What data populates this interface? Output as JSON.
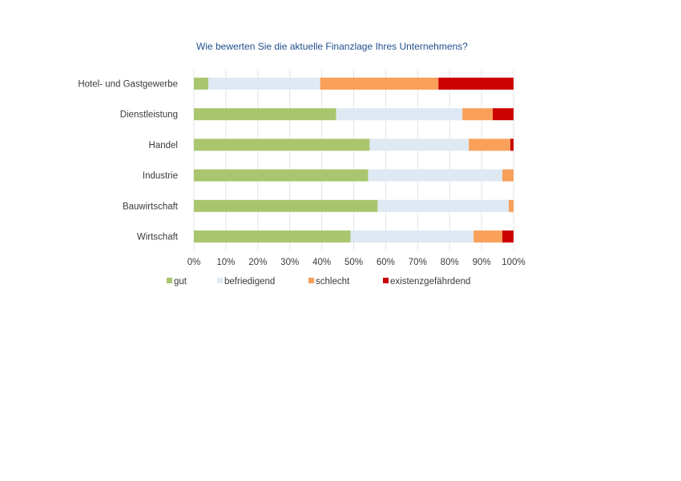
{
  "chart_data": {
    "type": "bar",
    "orientation": "horizontal",
    "stacked": true,
    "title": "Wie bewerten Sie die aktuelle Finanzlage Ihres Unternehmens?",
    "categories": [
      "Hotel- und Gastgewerbe",
      "Dienstleistung",
      "Handel",
      "Industrie",
      "Bauwirtschaft",
      "Wirtschaft"
    ],
    "series": [
      {
        "name": "gut",
        "color": "#a9c66f",
        "values": [
          4.5,
          44.5,
          55,
          54.5,
          57.5,
          49
        ]
      },
      {
        "name": "befriedigend",
        "color": "#dfe9f4",
        "values": [
          35,
          39.5,
          31,
          42,
          41,
          38.5
        ]
      },
      {
        "name": "schlecht",
        "color": "#f9a05a",
        "values": [
          37,
          9.5,
          13,
          3.5,
          1.5,
          9
        ]
      },
      {
        "name": "existenzgefährdend",
        "color": "#cc0000",
        "values": [
          23.5,
          6.5,
          1,
          0,
          0,
          3.5
        ]
      }
    ],
    "xticks": [
      "0%",
      "10%",
      "20%",
      "30%",
      "40%",
      "50%",
      "60%",
      "70%",
      "80%",
      "90%",
      "100%"
    ],
    "xlim": [
      0,
      100
    ],
    "grid": true,
    "legend_position": "bottom"
  }
}
